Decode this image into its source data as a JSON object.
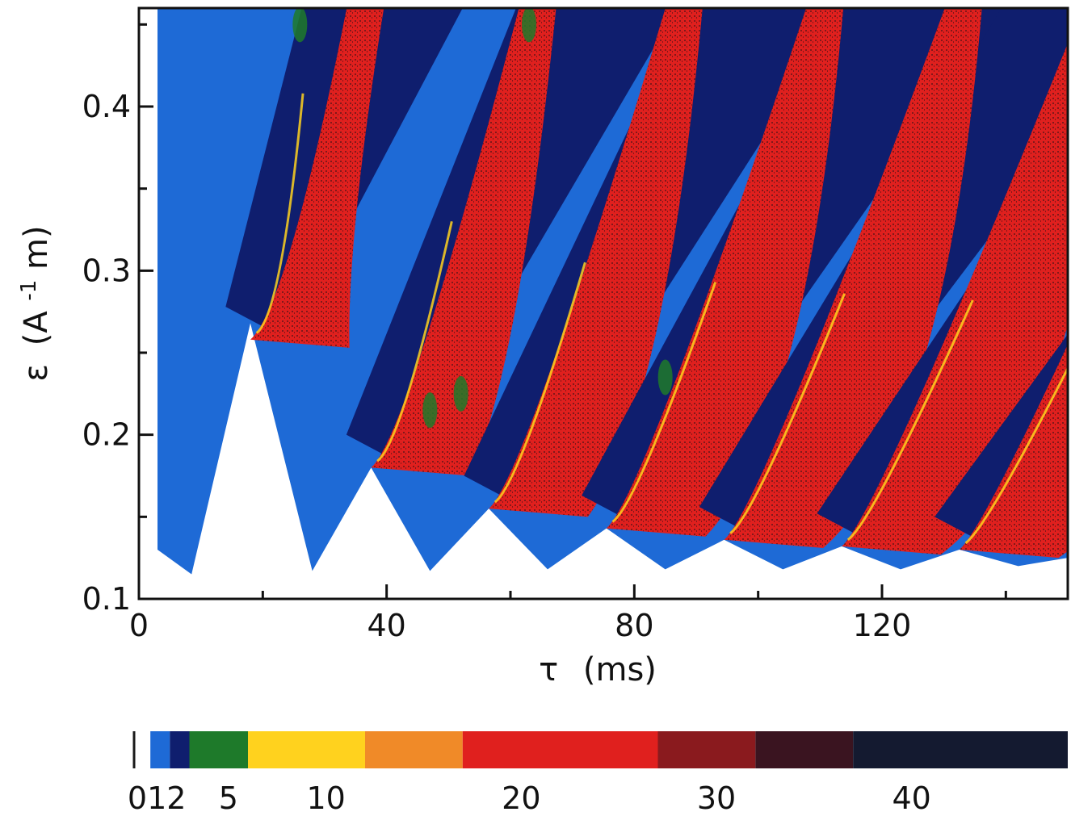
{
  "chart_data": {
    "type": "heatmap",
    "xlabel_symbol": "τ",
    "xlabel_unit": "(ms)",
    "ylabel_symbol": "ε",
    "ylabel_unit_base": "(A",
    "ylabel_unit_exp": "-1",
    "ylabel_unit_tail": " m)",
    "xlim": [
      0,
      150
    ],
    "ylim": [
      0.1,
      0.46
    ],
    "x_ticks": [
      {
        "value": 0,
        "label": "0"
      },
      {
        "value": 40,
        "label": "40"
      },
      {
        "value": 80,
        "label": "80"
      },
      {
        "value": 120,
        "label": "120"
      }
    ],
    "x_minor_ticks": [
      20,
      60,
      100,
      140
    ],
    "y_ticks": [
      {
        "value": 0.1,
        "label": "0.1"
      },
      {
        "value": 0.2,
        "label": "0.2"
      },
      {
        "value": 0.3,
        "label": "0.3"
      },
      {
        "value": 0.4,
        "label": "0.4"
      }
    ],
    "y_minor_ticks": [
      0.15,
      0.25,
      0.35,
      0.45
    ],
    "tongues": [
      {
        "tau": 8.5,
        "eps_min": 0.115,
        "high_order_onset_eps": null
      },
      {
        "tau": 18.0,
        "eps_min": 0.268,
        "high_order_onset_eps": 0.258
      },
      {
        "tau": 28.0,
        "eps_min": 0.117,
        "high_order_onset_eps": null
      },
      {
        "tau": 37.5,
        "eps_min": 0.18,
        "high_order_onset_eps": 0.18
      },
      {
        "tau": 47.0,
        "eps_min": 0.117,
        "high_order_onset_eps": null
      },
      {
        "tau": 56.5,
        "eps_min": 0.155,
        "high_order_onset_eps": 0.155
      },
      {
        "tau": 66.0,
        "eps_min": 0.118,
        "high_order_onset_eps": null
      },
      {
        "tau": 75.5,
        "eps_min": 0.143,
        "high_order_onset_eps": 0.143
      },
      {
        "tau": 85.0,
        "eps_min": 0.118,
        "high_order_onset_eps": null
      },
      {
        "tau": 94.5,
        "eps_min": 0.136,
        "high_order_onset_eps": 0.136
      },
      {
        "tau": 104.0,
        "eps_min": 0.118,
        "high_order_onset_eps": null
      },
      {
        "tau": 113.5,
        "eps_min": 0.132,
        "high_order_onset_eps": 0.132
      },
      {
        "tau": 123.0,
        "eps_min": 0.118,
        "high_order_onset_eps": null
      },
      {
        "tau": 132.5,
        "eps_min": 0.13,
        "high_order_onset_eps": 0.13
      },
      {
        "tau": 142.0,
        "eps_min": 0.12,
        "high_order_onset_eps": null
      }
    ],
    "colorbar": {
      "segments": [
        {
          "from": 0,
          "to": 1,
          "color": "#1a1a1a"
        },
        {
          "from": 1,
          "to": 2,
          "color": "#1e6ad6"
        },
        {
          "from": 2,
          "to": 3,
          "color": "#0f1e6e"
        },
        {
          "from": 3,
          "to": 6,
          "color": "#1e7a2a"
        },
        {
          "from": 6,
          "to": 12,
          "color": "#ffd21e"
        },
        {
          "from": 12,
          "to": 17,
          "color": "#f08a28"
        },
        {
          "from": 17,
          "to": 27,
          "color": "#e0201e"
        },
        {
          "from": 27,
          "to": 32,
          "color": "#8a1a1e"
        },
        {
          "from": 32,
          "to": 37,
          "color": "#3a1420"
        },
        {
          "from": 37,
          "to": 48,
          "color": "#141a30"
        }
      ],
      "labels": [
        {
          "value": 0,
          "label": "0"
        },
        {
          "value": 1,
          "label": "1"
        },
        {
          "value": 2,
          "label": "2"
        },
        {
          "value": 5,
          "label": "5"
        },
        {
          "value": 10,
          "label": "10"
        },
        {
          "value": 20,
          "label": "20"
        },
        {
          "value": 30,
          "label": "30"
        },
        {
          "value": 40,
          "label": "40"
        }
      ]
    },
    "colors": {
      "region_low": "#1e6ad6",
      "region_mid": "#0f1e6e",
      "region_chaos": "#e0201e",
      "region_chaos_dark": "#5a1418",
      "region_yellow": "#ffd21e",
      "region_green": "#1e7a2a",
      "background": "#ffffff"
    }
  }
}
